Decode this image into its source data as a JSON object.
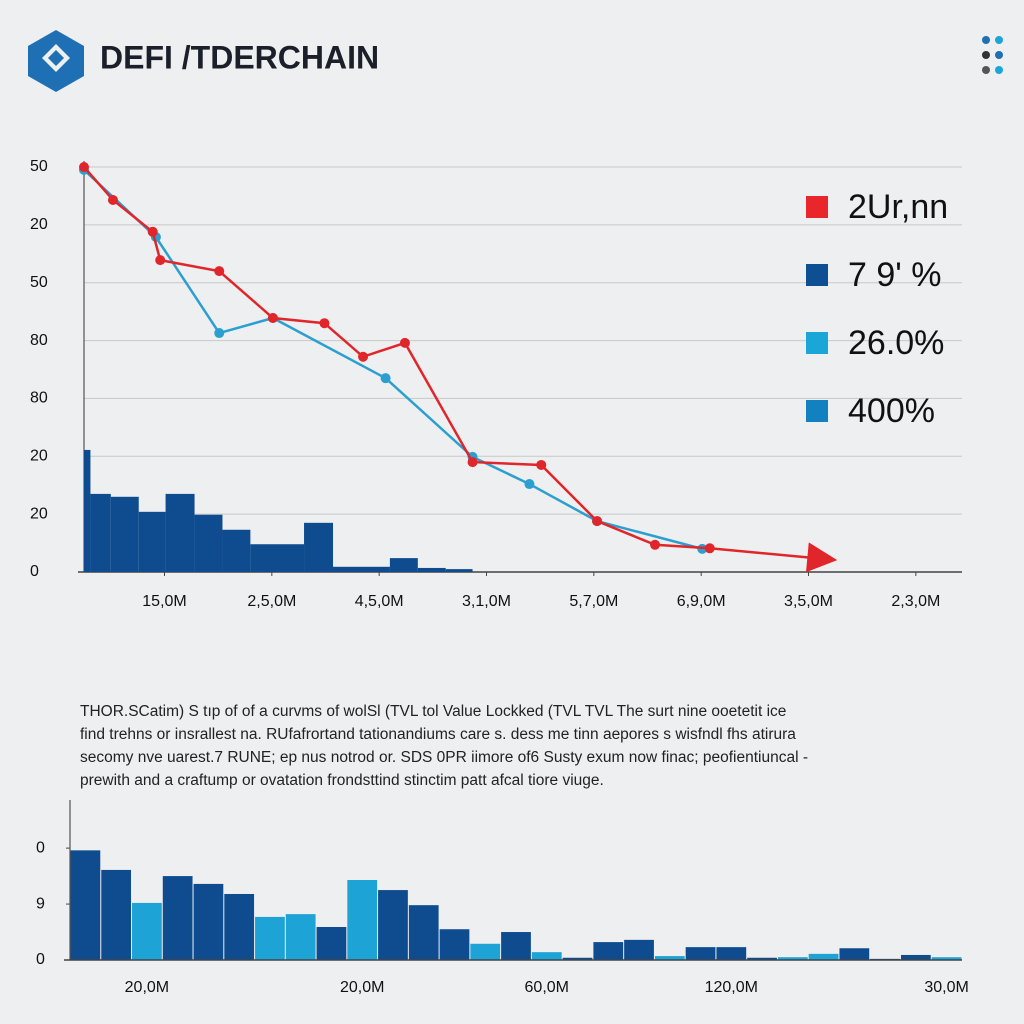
{
  "header": {
    "title": "DEFI /TDERCHAIN"
  },
  "text": [
    "THOR.SCatim) S tıp of of a curvms of wolSl (TVL tol Value Lockked (TVL TVL  The surt nine ooetetit ice",
    "find trehns or insrallest na. RUfafrortand tationandiums care s. dess me tinn aepores s wisfndl fhs atirura",
    "secomy nve uarest.7 RUNE; ep nus notrod or. SDS 0PR iimore of6 Susty exum now finac; peofientiuncal -",
    "prewith and a craftump or ovatation frondsttind stinctim patt afcal tiore viuge."
  ],
  "chart_data": [
    {
      "type": "line",
      "xlim": [
        0.25,
        8.43
      ],
      "ylim": [
        0,
        7
      ],
      "xticks": [
        {
          "value": 1,
          "label": "15,0M"
        },
        {
          "value": 2,
          "label": "2,5,0M"
        },
        {
          "value": 3,
          "label": "4,5,0M"
        },
        {
          "value": 4,
          "label": "3,1,0M"
        },
        {
          "value": 5,
          "label": "5,7,0M"
        },
        {
          "value": 6,
          "label": "6,9,0M"
        },
        {
          "value": 7,
          "label": "3,5,0M"
        },
        {
          "value": 8,
          "label": "2,3,0M"
        }
      ],
      "yticks": [
        {
          "value": 0,
          "label": "0"
        },
        {
          "value": 1,
          "label": "20"
        },
        {
          "value": 2,
          "label": "20"
        },
        {
          "value": 3,
          "label": "80"
        },
        {
          "value": 4,
          "label": "80"
        },
        {
          "value": 5,
          "label": "50"
        },
        {
          "value": 6,
          "label": "20"
        },
        {
          "value": 7,
          "label": "50"
        }
      ],
      "grid": true,
      "series": [
        {
          "color": "#2a9fd0",
          "x": [
            0.25,
            0.92,
            1.51,
            2.01,
            3.06,
            3.87,
            4.4,
            5.03,
            6.01
          ],
          "values": [
            6.95,
            5.79,
            4.13,
            4.39,
            3.35,
            1.99,
            1.52,
            0.88,
            0.4
          ]
        },
        {
          "color": "#e0262a",
          "arrow": true,
          "x": [
            0.25,
            0.52,
            0.89,
            0.96,
            1.51,
            2.01,
            2.49,
            2.85,
            3.24,
            3.87,
            4.51,
            5.03,
            5.57,
            6.08,
            7.24
          ],
          "values": [
            7.0,
            6.43,
            5.88,
            5.39,
            5.2,
            4.39,
            4.3,
            3.72,
            3.96,
            1.9,
            1.85,
            0.88,
            0.47,
            0.41,
            0.21
          ]
        }
      ],
      "histogram": {
        "color": "#0f4c8f",
        "bins": [
          0.25,
          0.31,
          0.5,
          0.76,
          1.01,
          1.28,
          1.54,
          1.8,
          2.3,
          2.57,
          2.84,
          3.1,
          3.36,
          3.62,
          3.87
        ],
        "values": [
          2.11,
          1.35,
          1.3,
          1.04,
          1.35,
          0.99,
          0.73,
          0.48,
          0.85,
          0.09,
          0.09,
          0.24,
          0.07,
          0.05
        ]
      },
      "legend": [
        {
          "name": "2Ur,nn",
          "color": "#e8262b"
        },
        {
          "name": "7 9' %",
          "color": "#0e4f94"
        },
        {
          "name": "26.0%",
          "color": "#1aa7d8"
        },
        {
          "name": "400%",
          "color": "#1380c0"
        }
      ]
    },
    {
      "type": "bar",
      "ylim": [
        0,
        2.86
      ],
      "yticks": [
        {
          "value": 0,
          "label": "0"
        },
        {
          "value": 1,
          "label": "9"
        },
        {
          "value": 2,
          "label": "0"
        }
      ],
      "categories": [
        null,
        null,
        "20,0M",
        null,
        null,
        null,
        null,
        null,
        null,
        "20,0M",
        null,
        null,
        null,
        null,
        null,
        "60,0M",
        null,
        null,
        null,
        null,
        null,
        "120,0M",
        null,
        null,
        null,
        null,
        null,
        null,
        "30,0M"
      ],
      "values": [
        1.96,
        1.61,
        1.02,
        1.5,
        1.36,
        1.18,
        0.77,
        0.82,
        0.59,
        1.43,
        1.25,
        0.98,
        0.55,
        0.29,
        0.5,
        0.14,
        0.04,
        0.32,
        0.36,
        0.07,
        0.23,
        0.23,
        0.04,
        0.05,
        0.11,
        0.21,
        0.02,
        0.09,
        0.05
      ],
      "colors": [
        "#0f4c8f",
        "#0f4c8f",
        "#1ea3d6",
        "#0f4c8f",
        "#0f4c8f",
        "#0f4c8f",
        "#1ea3d6",
        "#1ea3d6",
        "#0f4c8f",
        "#1ea3d6",
        "#0f4c8f",
        "#0f4c8f",
        "#0f4c8f",
        "#1ea3d6",
        "#0f4c8f",
        "#1ea3d6",
        "#0f4c8f",
        "#0f4c8f",
        "#0f4c8f",
        "#1ea3d6",
        "#0f4c8f",
        "#0f4c8f",
        "#0f4c8f",
        "#1ea3d6",
        "#1ea3d6",
        "#0f4c8f",
        "#0f4c8f",
        "#0f4c8f",
        "#1ea3d6"
      ]
    }
  ]
}
